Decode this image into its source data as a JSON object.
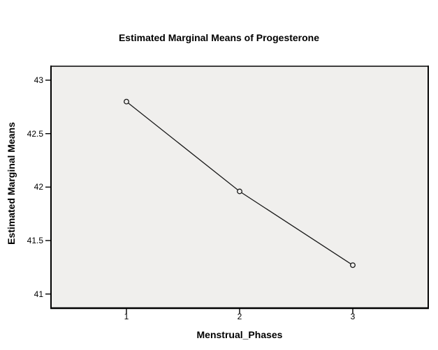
{
  "chart_data": {
    "type": "line",
    "title": "Estimated Marginal Means of Progesterone",
    "xlabel": "Menstrual_Phases",
    "ylabel": "Estimated Marginal Means",
    "categories": [
      "1",
      "2",
      "3"
    ],
    "series": [
      {
        "name": "Estimated Marginal Means",
        "values": [
          42.8,
          41.96,
          41.27
        ]
      }
    ],
    "ylim": [
      41,
      43
    ],
    "yticks": {
      "values": [
        43,
        42.5,
        42,
        41.5,
        41
      ],
      "labels": [
        "43",
        "42.5",
        "42",
        "41.5",
        "41"
      ]
    },
    "xticks": {
      "values": [
        1,
        2,
        3
      ],
      "labels": [
        "1",
        "2",
        "3"
      ]
    },
    "grid": false,
    "legend": "none",
    "marker": "open-circle",
    "colors": {
      "page_bg": "#ffffff",
      "plot_bg": "#f0efed",
      "frame": "#3f3f3f",
      "axis": "#000000",
      "line": "#1a1a1a",
      "text": "#000000"
    }
  }
}
